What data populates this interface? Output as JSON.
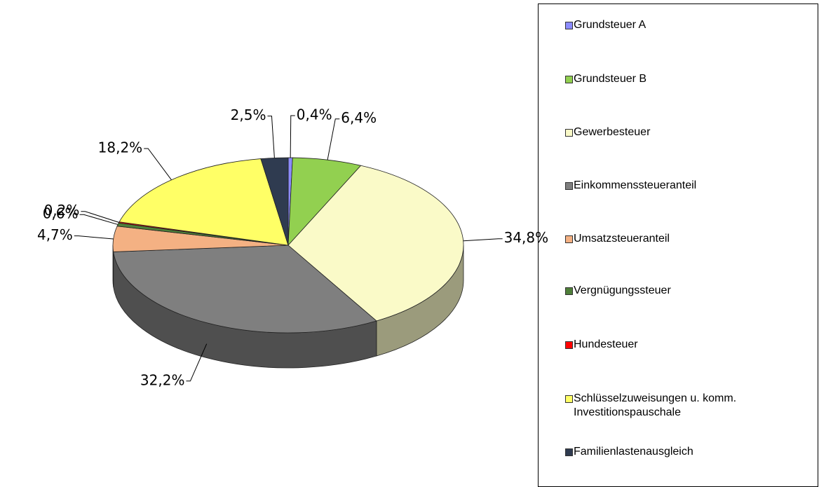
{
  "chart_data": {
    "type": "pie",
    "categories": [
      "Grundsteuer A",
      "Grundsteuer B",
      "Gewerbesteuer",
      "Einkommenssteueranteil",
      "Umsatzsteueranteil",
      "Vergnügungssteuer",
      "Hundesteuer",
      "Schlüsselzuweisungen u. komm. Investitionspauschale",
      "Familienlastenausgleich"
    ],
    "values": [
      0.4,
      6.4,
      34.8,
      32.2,
      4.7,
      0.6,
      0.2,
      18.2,
      2.5
    ],
    "value_labels": [
      "0,4%",
      "6,4%",
      "34,8%",
      "32,2%",
      "4,7%",
      "0,6%",
      "0,2%",
      "18,2%",
      "2,5%"
    ],
    "colors": [
      "#8c8cff",
      "#92d050",
      "#fafac8",
      "#7f7f7f",
      "#f4b183",
      "#4f7f3a",
      "#ff0000",
      "#ffff66",
      "#2f3b50"
    ],
    "legend": "right"
  }
}
